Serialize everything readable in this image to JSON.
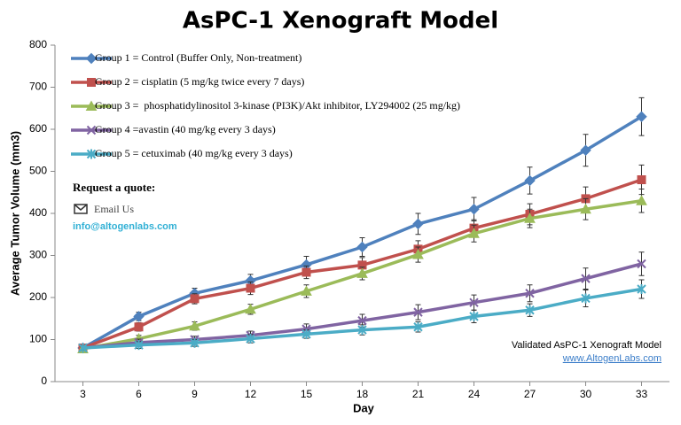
{
  "chart_data": {
    "type": "line",
    "title": "AsPC-1 Xenograft Model",
    "x_label": "Day",
    "y_label": "Average Tumor Volume (mm3)",
    "x": [
      3,
      6,
      9,
      12,
      15,
      18,
      21,
      24,
      27,
      30,
      33
    ],
    "xlim": [
      1.5,
      34.5
    ],
    "xticks": [
      3,
      6,
      9,
      12,
      15,
      18,
      21,
      24,
      27,
      30,
      33
    ],
    "ylim": [
      0,
      800
    ],
    "yticks": [
      0,
      100,
      200,
      300,
      400,
      500,
      600,
      700,
      800
    ],
    "grid": false,
    "legend": "top-left",
    "series": [
      {
        "name": "Group 1 = Control (Buffer Only, Non-treatment)",
        "color": "#4f81bd",
        "marker": "diamond",
        "values": [
          80,
          155,
          210,
          240,
          278,
          320,
          375,
          410,
          478,
          550,
          630
        ],
        "errors": [
          8,
          10,
          12,
          15,
          20,
          22,
          25,
          28,
          32,
          38,
          45
        ]
      },
      {
        "name": "Group 2 = cisplatin (5 mg/kg twice every 7 days)",
        "color": "#c0504d",
        "marker": "square",
        "values": [
          80,
          130,
          197,
          222,
          260,
          277,
          315,
          365,
          398,
          435,
          480
        ],
        "errors": [
          5,
          10,
          12,
          15,
          15,
          18,
          20,
          20,
          25,
          28,
          35
        ]
      },
      {
        "name": "Group 3 =  phosphatidylinositol 3-kinase (PI3K)/Akt inhibitor, LY294002 (25 mg/kg)",
        "color": "#9bbb59",
        "marker": "triangle",
        "values": [
          78,
          102,
          132,
          172,
          215,
          257,
          302,
          352,
          388,
          410,
          430
        ],
        "errors": [
          5,
          8,
          10,
          12,
          15,
          15,
          18,
          20,
          22,
          25,
          28
        ]
      },
      {
        "name": "Group 4 =avastin (40 mg/kg every 3 days)",
        "color": "#8064a2",
        "marker": "x",
        "values": [
          80,
          93,
          100,
          110,
          125,
          145,
          165,
          188,
          210,
          245,
          280
        ],
        "errors": [
          5,
          8,
          8,
          10,
          12,
          15,
          18,
          18,
          20,
          25,
          28
        ]
      },
      {
        "name": "Group 5 = cetuximab (40 mg/kg every 3 days)",
        "color": "#4bacc6",
        "marker": "star",
        "values": [
          80,
          87,
          92,
          102,
          113,
          123,
          130,
          155,
          170,
          198,
          220
        ],
        "errors": [
          5,
          8,
          8,
          10,
          10,
          12,
          12,
          15,
          15,
          20,
          22
        ]
      }
    ],
    "quote": {
      "heading": "Request a quote:",
      "email_link": "Email Us",
      "email": "info@altogenlabs.com"
    },
    "footer": {
      "caption": "Validated AsPC-1 Xenograft Model",
      "url": "www.AltogenLabs.com"
    }
  }
}
